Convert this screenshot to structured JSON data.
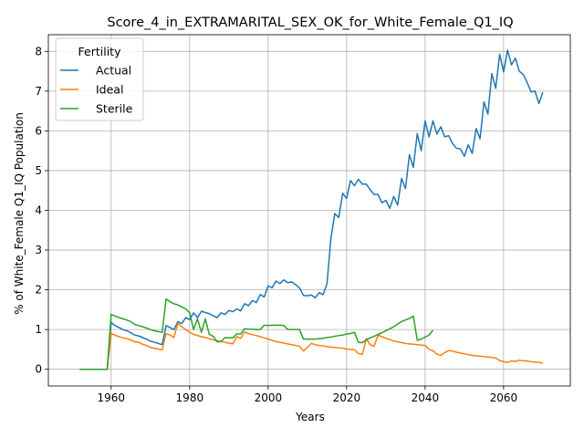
{
  "chart_data": {
    "type": "line",
    "title": "Score_4_in_EXTRAMARITAL_SEX_OK_for_White_Female_Q1_IQ",
    "xlabel": "Years",
    "ylabel": "% of White_Female Q1_IQ Population",
    "xlim": [
      1944,
      2077
    ],
    "ylim": [
      -0.42,
      8.42
    ],
    "xticks": [
      1960,
      1980,
      2000,
      2020,
      2040,
      2060
    ],
    "yticks": [
      0,
      1,
      2,
      3,
      4,
      5,
      6,
      7,
      8
    ],
    "grid": true,
    "legend": {
      "title": "Fertility",
      "placement": "top-left"
    },
    "series": [
      {
        "name": "Actual",
        "color": "#1f77b4",
        "points": [
          [
            1952,
            0
          ],
          [
            1959,
            0
          ],
          [
            1960,
            1.18
          ],
          [
            1961,
            1.1
          ],
          [
            1962,
            1.05
          ],
          [
            1963,
            1.0
          ],
          [
            1964,
            0.97
          ],
          [
            1965,
            0.92
          ],
          [
            1966,
            0.86
          ],
          [
            1967,
            0.84
          ],
          [
            1968,
            0.8
          ],
          [
            1969,
            0.76
          ],
          [
            1970,
            0.71
          ],
          [
            1971,
            0.68
          ],
          [
            1972,
            0.65
          ],
          [
            1973,
            0.62
          ],
          [
            1974,
            1.1
          ],
          [
            1975,
            1.05
          ],
          [
            1976,
            1.0
          ],
          [
            1977,
            1.2
          ],
          [
            1978,
            1.15
          ],
          [
            1979,
            1.3
          ],
          [
            1980,
            1.25
          ],
          [
            1981,
            1.42
          ],
          [
            1982,
            1.3
          ],
          [
            1983,
            1.46
          ],
          [
            1984,
            1.43
          ],
          [
            1985,
            1.4
          ],
          [
            1986,
            1.35
          ],
          [
            1987,
            1.3
          ],
          [
            1988,
            1.42
          ],
          [
            1989,
            1.38
          ],
          [
            1990,
            1.48
          ],
          [
            1991,
            1.45
          ],
          [
            1992,
            1.52
          ],
          [
            1993,
            1.47
          ],
          [
            1994,
            1.65
          ],
          [
            1995,
            1.6
          ],
          [
            1996,
            1.73
          ],
          [
            1997,
            1.68
          ],
          [
            1998,
            1.88
          ],
          [
            1999,
            1.82
          ],
          [
            2000,
            2.1
          ],
          [
            2001,
            2.05
          ],
          [
            2002,
            2.22
          ],
          [
            2003,
            2.16
          ],
          [
            2004,
            2.25
          ],
          [
            2005,
            2.18
          ],
          [
            2006,
            2.2
          ],
          [
            2007,
            2.13
          ],
          [
            2008,
            2.05
          ],
          [
            2009,
            1.86
          ],
          [
            2010,
            1.85
          ],
          [
            2011,
            1.87
          ],
          [
            2012,
            1.8
          ],
          [
            2013,
            1.93
          ],
          [
            2014,
            1.88
          ],
          [
            2015,
            2.15
          ],
          [
            2016,
            3.3
          ],
          [
            2017,
            3.92
          ],
          [
            2018,
            3.82
          ],
          [
            2019,
            4.43
          ],
          [
            2020,
            4.3
          ],
          [
            2021,
            4.75
          ],
          [
            2022,
            4.62
          ],
          [
            2023,
            4.78
          ],
          [
            2024,
            4.66
          ],
          [
            2025,
            4.66
          ],
          [
            2026,
            4.52
          ],
          [
            2027,
            4.4
          ],
          [
            2028,
            4.4
          ],
          [
            2029,
            4.19
          ],
          [
            2030,
            4.25
          ],
          [
            2031,
            4.05
          ],
          [
            2032,
            4.35
          ],
          [
            2033,
            4.13
          ],
          [
            2034,
            4.8
          ],
          [
            2035,
            4.55
          ],
          [
            2036,
            5.4
          ],
          [
            2037,
            5.08
          ],
          [
            2038,
            5.93
          ],
          [
            2039,
            5.5
          ],
          [
            2040,
            6.25
          ],
          [
            2041,
            5.85
          ],
          [
            2042,
            6.25
          ],
          [
            2043,
            5.92
          ],
          [
            2044,
            6.1
          ],
          [
            2045,
            5.85
          ],
          [
            2046,
            5.88
          ],
          [
            2047,
            5.68
          ],
          [
            2048,
            5.56
          ],
          [
            2049,
            5.55
          ],
          [
            2050,
            5.36
          ],
          [
            2051,
            5.65
          ],
          [
            2052,
            5.43
          ],
          [
            2053,
            6.06
          ],
          [
            2054,
            5.8
          ],
          [
            2055,
            6.73
          ],
          [
            2056,
            6.42
          ],
          [
            2057,
            7.44
          ],
          [
            2058,
            7.07
          ],
          [
            2059,
            7.93
          ],
          [
            2060,
            7.48
          ],
          [
            2061,
            8.03
          ],
          [
            2062,
            7.66
          ],
          [
            2063,
            7.83
          ],
          [
            2064,
            7.5
          ],
          [
            2065,
            7.42
          ],
          [
            2066,
            7.22
          ],
          [
            2067,
            6.98
          ],
          [
            2068,
            7.0
          ],
          [
            2069,
            6.69
          ],
          [
            2070,
            6.97
          ]
        ]
      },
      {
        "name": "Ideal",
        "color": "#ff7f0e",
        "points": [
          [
            1952,
            0
          ],
          [
            1959,
            0
          ],
          [
            1960,
            0.9
          ],
          [
            1961,
            0.86
          ],
          [
            1962,
            0.82
          ],
          [
            1963,
            0.79
          ],
          [
            1964,
            0.77
          ],
          [
            1965,
            0.74
          ],
          [
            1966,
            0.69
          ],
          [
            1967,
            0.68
          ],
          [
            1968,
            0.63
          ],
          [
            1969,
            0.6
          ],
          [
            1970,
            0.55
          ],
          [
            1971,
            0.53
          ],
          [
            1972,
            0.51
          ],
          [
            1973,
            0.49
          ],
          [
            1974,
            0.9
          ],
          [
            1975,
            0.86
          ],
          [
            1976,
            0.8
          ],
          [
            1977,
            1.16
          ],
          [
            1978,
            1.07
          ],
          [
            1979,
            1.0
          ],
          [
            1980,
            0.93
          ],
          [
            1981,
            0.88
          ],
          [
            1982,
            0.85
          ],
          [
            1983,
            0.82
          ],
          [
            1984,
            0.8
          ],
          [
            1985,
            0.77
          ],
          [
            1986,
            0.74
          ],
          [
            1987,
            0.72
          ],
          [
            1988,
            0.7
          ],
          [
            1989,
            0.68
          ],
          [
            1990,
            0.66
          ],
          [
            1991,
            0.64
          ],
          [
            1992,
            0.82
          ],
          [
            1993,
            0.78
          ],
          [
            1994,
            0.94
          ],
          [
            1995,
            0.9
          ],
          [
            1996,
            0.87
          ],
          [
            1997,
            0.85
          ],
          [
            1998,
            0.82
          ],
          [
            1999,
            0.79
          ],
          [
            2000,
            0.76
          ],
          [
            2001,
            0.73
          ],
          [
            2002,
            0.7
          ],
          [
            2003,
            0.68
          ],
          [
            2004,
            0.66
          ],
          [
            2005,
            0.64
          ],
          [
            2006,
            0.62
          ],
          [
            2007,
            0.6
          ],
          [
            2008,
            0.58
          ],
          [
            2009,
            0.46
          ],
          [
            2010,
            0.55
          ],
          [
            2011,
            0.65
          ],
          [
            2012,
            0.62
          ],
          [
            2013,
            0.6
          ],
          [
            2014,
            0.59
          ],
          [
            2015,
            0.57
          ],
          [
            2016,
            0.56
          ],
          [
            2017,
            0.55
          ],
          [
            2018,
            0.54
          ],
          [
            2019,
            0.53
          ],
          [
            2020,
            0.51
          ],
          [
            2021,
            0.5
          ],
          [
            2022,
            0.49
          ],
          [
            2023,
            0.4
          ],
          [
            2024,
            0.37
          ],
          [
            2025,
            0.77
          ],
          [
            2026,
            0.62
          ],
          [
            2027,
            0.58
          ],
          [
            2028,
            0.86
          ],
          [
            2029,
            0.82
          ],
          [
            2030,
            0.78
          ],
          [
            2031,
            0.75
          ],
          [
            2032,
            0.71
          ],
          [
            2033,
            0.69
          ],
          [
            2034,
            0.67
          ],
          [
            2035,
            0.65
          ],
          [
            2036,
            0.64
          ],
          [
            2037,
            0.63
          ],
          [
            2038,
            0.62
          ],
          [
            2039,
            0.61
          ],
          [
            2040,
            0.6
          ],
          [
            2041,
            0.5
          ],
          [
            2042,
            0.47
          ],
          [
            2043,
            0.38
          ],
          [
            2044,
            0.35
          ],
          [
            2045,
            0.42
          ],
          [
            2046,
            0.47
          ],
          [
            2047,
            0.46
          ],
          [
            2048,
            0.43
          ],
          [
            2049,
            0.41
          ],
          [
            2050,
            0.39
          ],
          [
            2051,
            0.37
          ],
          [
            2052,
            0.35
          ],
          [
            2053,
            0.34
          ],
          [
            2054,
            0.33
          ],
          [
            2055,
            0.32
          ],
          [
            2056,
            0.31
          ],
          [
            2057,
            0.3
          ],
          [
            2058,
            0.28
          ],
          [
            2059,
            0.22
          ],
          [
            2060,
            0.19
          ],
          [
            2061,
            0.17
          ],
          [
            2062,
            0.21
          ],
          [
            2063,
            0.2
          ],
          [
            2064,
            0.23
          ],
          [
            2065,
            0.21
          ],
          [
            2066,
            0.21
          ],
          [
            2067,
            0.19
          ],
          [
            2068,
            0.18
          ],
          [
            2069,
            0.17
          ],
          [
            2070,
            0.16
          ]
        ]
      },
      {
        "name": "Sterile",
        "color": "#2ca02c",
        "points": [
          [
            1952,
            0
          ],
          [
            1959,
            0
          ],
          [
            1960,
            1.38
          ],
          [
            1961,
            1.34
          ],
          [
            1962,
            1.3
          ],
          [
            1963,
            1.27
          ],
          [
            1964,
            1.24
          ],
          [
            1965,
            1.2
          ],
          [
            1966,
            1.13
          ],
          [
            1967,
            1.1
          ],
          [
            1968,
            1.07
          ],
          [
            1969,
            1.04
          ],
          [
            1970,
            1.0
          ],
          [
            1971,
            0.97
          ],
          [
            1972,
            0.95
          ],
          [
            1973,
            0.93
          ],
          [
            1974,
            1.77
          ],
          [
            1975,
            1.7
          ],
          [
            1976,
            1.65
          ],
          [
            1977,
            1.62
          ],
          [
            1978,
            1.57
          ],
          [
            1979,
            1.52
          ],
          [
            1980,
            1.42
          ],
          [
            1981,
            1.0
          ],
          [
            1982,
            1.27
          ],
          [
            1983,
            0.93
          ],
          [
            1984,
            1.27
          ],
          [
            1985,
            0.88
          ],
          [
            1986,
            0.83
          ],
          [
            1987,
            0.69
          ],
          [
            1988,
            0.7
          ],
          [
            1989,
            0.8
          ],
          [
            1990,
            0.79
          ],
          [
            1991,
            0.79
          ],
          [
            1992,
            0.89
          ],
          [
            1993,
            0.89
          ],
          [
            1994,
            1.02
          ],
          [
            1995,
            1.01
          ],
          [
            1996,
            1.01
          ],
          [
            1997,
            1.0
          ],
          [
            1998,
            1.0
          ],
          [
            1999,
            1.11
          ],
          [
            2000,
            1.1
          ],
          [
            2001,
            1.11
          ],
          [
            2002,
            1.11
          ],
          [
            2003,
            1.11
          ],
          [
            2004,
            1.1
          ],
          [
            2005,
            1.0
          ],
          [
            2006,
            1.0
          ],
          [
            2007,
            1.0
          ],
          [
            2008,
            1.0
          ],
          [
            2009,
            0.76
          ],
          [
            2010,
            0.76
          ],
          [
            2011,
            0.76
          ],
          [
            2012,
            0.76
          ],
          [
            2013,
            0.77
          ],
          [
            2014,
            0.78
          ],
          [
            2015,
            0.8
          ],
          [
            2016,
            0.81
          ],
          [
            2017,
            0.83
          ],
          [
            2018,
            0.85
          ],
          [
            2019,
            0.86
          ],
          [
            2020,
            0.89
          ],
          [
            2021,
            0.9
          ],
          [
            2022,
            0.93
          ],
          [
            2023,
            0.68
          ],
          [
            2024,
            0.67
          ],
          [
            2025,
            0.74
          ],
          [
            2026,
            0.79
          ],
          [
            2027,
            0.83
          ],
          [
            2028,
            0.88
          ],
          [
            2029,
            0.92
          ],
          [
            2030,
            0.97
          ],
          [
            2031,
            1.02
          ],
          [
            2032,
            1.07
          ],
          [
            2033,
            1.14
          ],
          [
            2034,
            1.2
          ],
          [
            2035,
            1.24
          ],
          [
            2036,
            1.28
          ],
          [
            2037,
            1.34
          ],
          [
            2038,
            0.73
          ],
          [
            2039,
            0.76
          ],
          [
            2040,
            0.81
          ],
          [
            2041,
            0.86
          ],
          [
            2042,
            0.98
          ]
        ]
      }
    ]
  }
}
